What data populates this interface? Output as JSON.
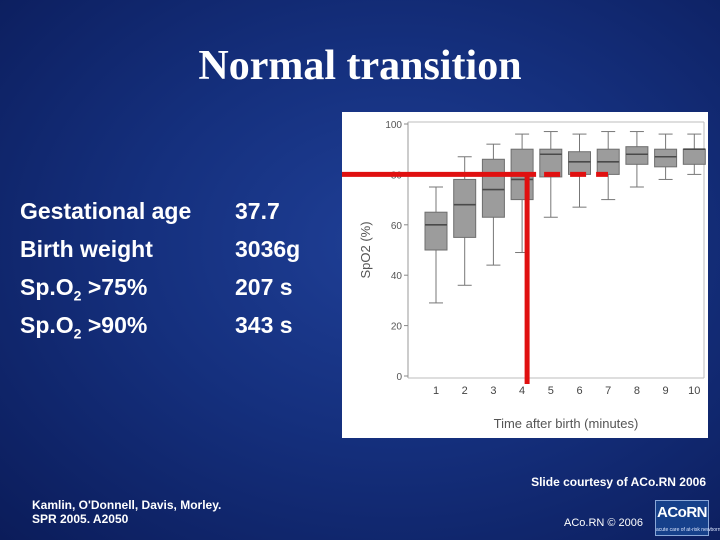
{
  "title": "Normal transition",
  "stats": [
    {
      "label": "Gestational age",
      "sub": "",
      "suffix": "",
      "value": "37.7"
    },
    {
      "label": "Birth weight",
      "sub": "",
      "suffix": "",
      "value": "3036g"
    },
    {
      "label": "Sp.O",
      "sub": "2",
      "suffix": " >75%",
      "value": "207 s"
    },
    {
      "label": "Sp.O",
      "sub": "2",
      "suffix": " >90%",
      "value": "343 s"
    }
  ],
  "chart_data": {
    "type": "boxplot",
    "xlabel": "Time after birth (minutes)",
    "ylabel": "SpO2 (%)",
    "ylim": [
      0,
      100
    ],
    "yticks": [
      0,
      20,
      40,
      60,
      80,
      100
    ],
    "categories": [
      "1",
      "2",
      "3",
      "4",
      "5",
      "6",
      "7",
      "8",
      "9",
      "10"
    ],
    "boxes": [
      {
        "min": 29,
        "q1": 50,
        "median": 60,
        "q3": 65,
        "max": 75
      },
      {
        "min": 36,
        "q1": 55,
        "median": 68,
        "q3": 78,
        "max": 87
      },
      {
        "min": 44,
        "q1": 63,
        "median": 74,
        "q3": 86,
        "max": 92
      },
      {
        "min": 49,
        "q1": 70,
        "median": 78,
        "q3": 90,
        "max": 96
      },
      {
        "min": 63,
        "q1": 79,
        "median": 88,
        "q3": 90,
        "max": 97
      },
      {
        "min": 67,
        "q1": 80,
        "median": 85,
        "q3": 89,
        "max": 96
      },
      {
        "min": 70,
        "q1": 80,
        "median": 85,
        "q3": 90,
        "max": 97
      },
      {
        "min": 75,
        "q1": 84,
        "median": 88,
        "q3": 91,
        "max": 97
      },
      {
        "min": 78,
        "q1": 83,
        "median": 87,
        "q3": 90,
        "max": 96
      },
      {
        "min": 80,
        "q1": 84,
        "median": 90,
        "q3": 90,
        "max": 96
      }
    ],
    "annotations": {
      "threshold_solid_y": 80,
      "threshold_dashed_y": 80,
      "marker_minute": "4",
      "color": "#e01010"
    }
  },
  "courtesy": "Slide courtesy of ACo.RN 2006",
  "citation": {
    "line1": "Kamlin, O'Donnell, Davis, Morley.",
    "line2": "SPR 2005. A2050"
  },
  "copyright": "ACo.RN © 2006",
  "logo": {
    "text": "ACoRN",
    "sub": "acute care of at-risk newborns"
  },
  "colors": {
    "background": "#15307e",
    "accent": "#e01010",
    "box_fill": "#9c9c9c"
  }
}
